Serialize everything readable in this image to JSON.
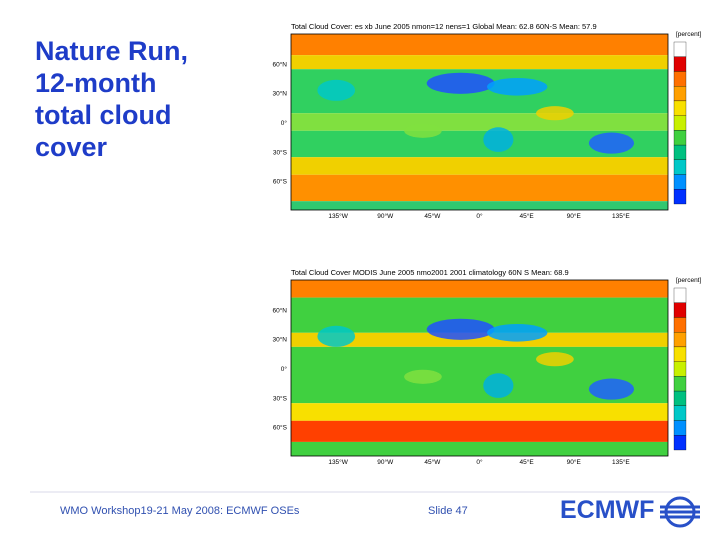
{
  "slide_title": [
    "Nature Run,",
    "12-month",
    "total cloud",
    "cover"
  ],
  "maps": [
    {
      "title": "Total Cloud Cover: es xb  June 2005 nmon=12 nens=1  Global Mean: 62.8  60N-S Mean: 57.9",
      "unit": "[percent]",
      "lat_labels": [
        "60°N",
        "30°N",
        "0°",
        "30°S",
        "60°S"
      ],
      "lon_labels": [
        "135°W",
        "90°W",
        "45°W",
        "0°",
        "45°E",
        "90°E",
        "135°E"
      ]
    },
    {
      "title": "Total Cloud Cover  MODIS June 2005 nmo2001 2001 climatology  60N S Mean: 68.9",
      "unit": "[percent]",
      "lat_labels": [
        "60°N",
        "30°N",
        "0°",
        "30°S",
        "60°S"
      ],
      "lon_labels": [
        "135°W",
        "90°W",
        "45°W",
        "0°",
        "45°E",
        "90°E",
        "135°E"
      ]
    }
  ],
  "footer": {
    "event": "WMO Workshop19-21 May 2008: ECMWF OSEs",
    "slide": "Slide 47",
    "logo": "ECMWF"
  }
}
